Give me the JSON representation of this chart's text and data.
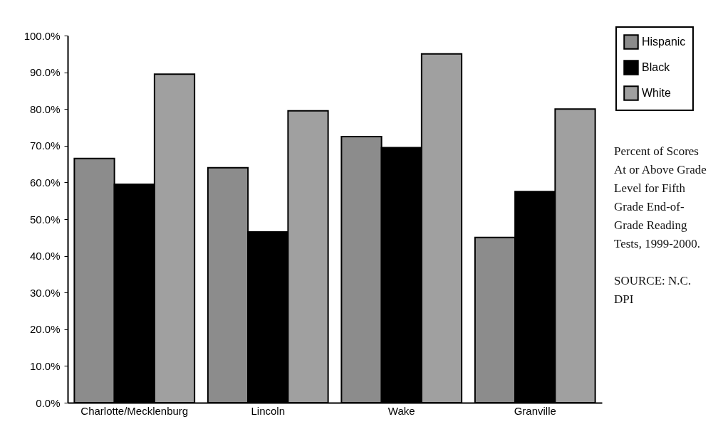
{
  "chart_data": {
    "type": "bar",
    "categories": [
      "Charlotte/Mecklenburg",
      "Lincoln",
      "Wake",
      "Granville"
    ],
    "series": [
      {
        "name": "Hispanic",
        "color": "#8c8c8c",
        "values": [
          66.5,
          64,
          72.5,
          45
        ]
      },
      {
        "name": "Black",
        "color": "#000000",
        "values": [
          59.5,
          46.5,
          69.5,
          57.5
        ]
      },
      {
        "name": "White",
        "color": "#a0a0a0",
        "values": [
          89.5,
          79.5,
          95,
          80
        ]
      }
    ],
    "ylim": [
      0,
      100
    ],
    "yticks": [
      {
        "value": 0,
        "label": "0.0%"
      },
      {
        "value": 10,
        "label": "10.0%"
      },
      {
        "value": 20,
        "label": "20.0%"
      },
      {
        "value": 30,
        "label": "30.0%"
      },
      {
        "value": 40,
        "label": "40.0%"
      },
      {
        "value": 50,
        "label": "50.0%"
      },
      {
        "value": 60,
        "label": "60.0%"
      },
      {
        "value": 70,
        "label": "70.0%"
      },
      {
        "value": 80,
        "label": "80.0%"
      },
      {
        "value": 90,
        "label": "90.0%"
      },
      {
        "value": 100,
        "label": "100.0%"
      }
    ],
    "grid": false,
    "legend": "top right",
    "annotations": [
      "Percent of Scores At or Above Grade Level for Fifth Grade End-of-Grade Reading Tests, 1999-2000.",
      "SOURCE: N.C. DPI"
    ]
  }
}
